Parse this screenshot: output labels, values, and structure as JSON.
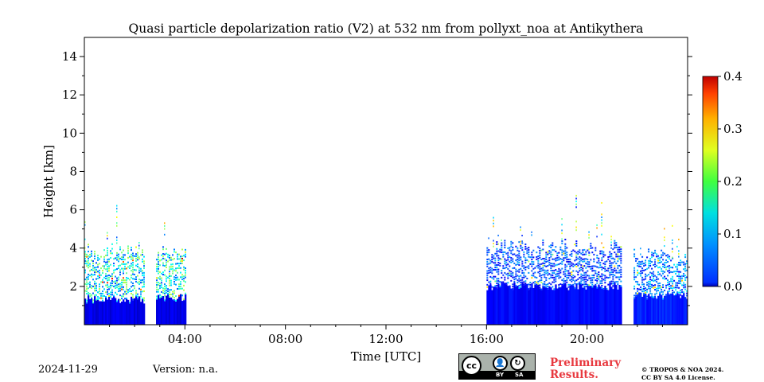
{
  "chart_data": {
    "type": "heatmap",
    "title": "Quasi particle depolarization ratio (V2) at 532 nm from pollyxt_noa at Antikythera",
    "xlabel": "Time [UTC]",
    "ylabel": "Height [km]",
    "x_range_hours": [
      0,
      24
    ],
    "y_range_km": [
      0,
      15
    ],
    "x_ticks": [
      {
        "value": 4,
        "label": "04:00"
      },
      {
        "value": 8,
        "label": "08:00"
      },
      {
        "value": 12,
        "label": "12:00"
      },
      {
        "value": 16,
        "label": "16:00"
      },
      {
        "value": 20,
        "label": "20:00"
      }
    ],
    "y_ticks": [
      {
        "value": 2,
        "label": "2"
      },
      {
        "value": 4,
        "label": "4"
      },
      {
        "value": 6,
        "label": "6"
      },
      {
        "value": 8,
        "label": "8"
      },
      {
        "value": 10,
        "label": "10"
      },
      {
        "value": 12,
        "label": "12"
      },
      {
        "value": 14,
        "label": "14"
      }
    ],
    "colorbar": {
      "range": [
        0.0,
        0.4
      ],
      "colormap": "jet",
      "ticks": [
        {
          "value": 0.0,
          "label": "0.0"
        },
        {
          "value": 0.1,
          "label": "0.1"
        },
        {
          "value": 0.2,
          "label": "0.2"
        },
        {
          "value": 0.3,
          "label": "0.3"
        },
        {
          "value": 0.4,
          "label": "0.4"
        }
      ]
    },
    "measurement_periods": [
      {
        "start_h": 0.0,
        "end_h": 2.35,
        "boundary_layer_top_km": 1.3,
        "aerosol_layer_top_km": 3.7,
        "mean_ratio_low": 0.03,
        "mean_ratio_high": 0.15
      },
      {
        "start_h": 2.85,
        "end_h": 4.0,
        "boundary_layer_top_km": 1.4,
        "aerosol_layer_top_km": 3.7,
        "mean_ratio_low": 0.03,
        "mean_ratio_high": 0.15
      },
      {
        "start_h": 16.0,
        "end_h": 21.35,
        "boundary_layer_top_km": 2.0,
        "aerosol_layer_top_km": 3.9,
        "mean_ratio_low": 0.04,
        "mean_ratio_high": 0.08
      },
      {
        "start_h": 21.85,
        "end_h": 24.0,
        "boundary_layer_top_km": 1.5,
        "aerosol_layer_top_km": 3.5,
        "mean_ratio_low": 0.05,
        "mean_ratio_high": 0.1
      }
    ]
  },
  "footer": {
    "date": "2024-11-29",
    "version": "Version: n.a.",
    "preliminary_line1": "Preliminary",
    "preliminary_line2": "Results.",
    "copyright_line1": "© TROPOS & NOA 2024.",
    "copyright_line2": "CC BY SA 4.0 License.",
    "license_badge": {
      "cc": "cc",
      "by": "BY",
      "sa": "SA"
    }
  }
}
